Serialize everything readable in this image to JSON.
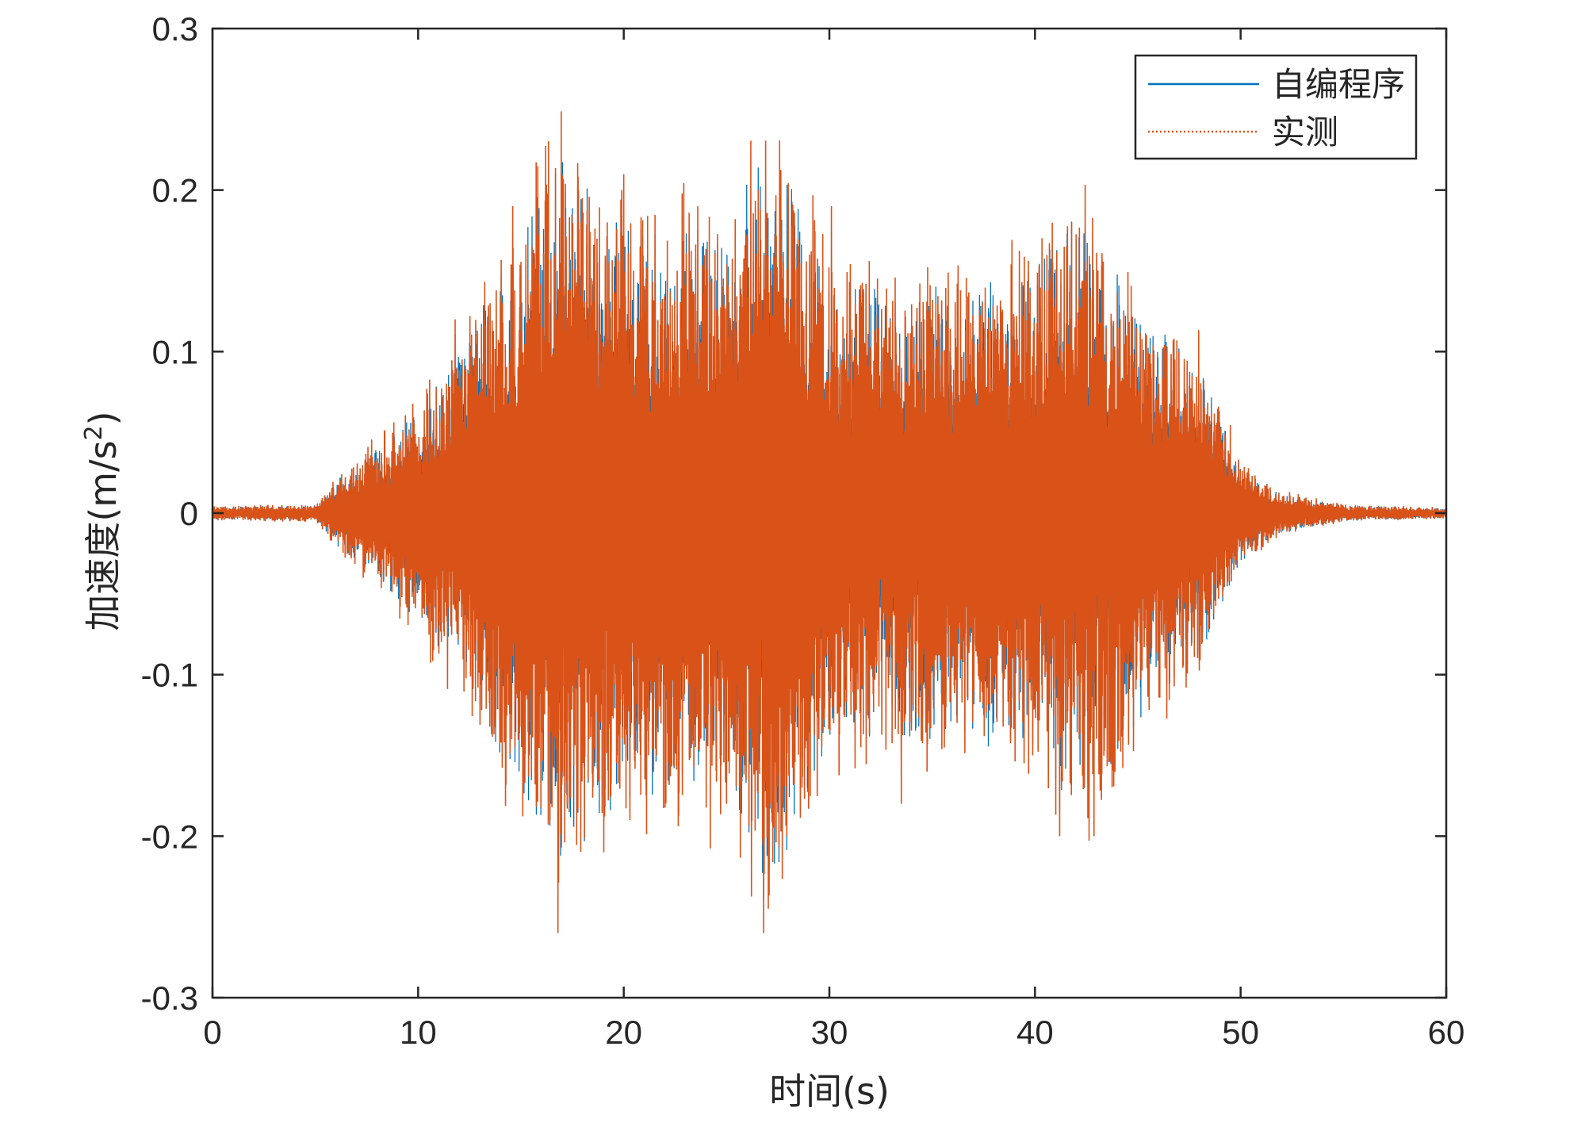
{
  "colors": {
    "series_simulated": "#0072BD",
    "series_measured": "#D95319",
    "axes": "#262626",
    "background": "#ffffff"
  },
  "chart_data": {
    "type": "line",
    "title": "",
    "xlabel": "时间(s)",
    "ylabel": "加速度(m/s2)",
    "ylabel_parts": {
      "base": "加速度(m/s",
      "sup": "2",
      "close": ")"
    },
    "xlim": [
      0,
      60
    ],
    "ylim": [
      -0.3,
      0.3
    ],
    "xticks": [
      0,
      10,
      20,
      30,
      40,
      50,
      60
    ],
    "xtick_labels": [
      "0",
      "10",
      "20",
      "30",
      "40",
      "50",
      "60"
    ],
    "yticks": [
      -0.3,
      -0.2,
      -0.1,
      0,
      0.1,
      0.2,
      0.3
    ],
    "ytick_labels": [
      "-0.3",
      "-0.2",
      "-0.1",
      "0",
      "0.1",
      "0.2",
      "0.3"
    ],
    "grid": false,
    "legend_position": "top-right",
    "series": [
      {
        "name": "自编程序",
        "line_style": "solid",
        "color": "#0072BD"
      },
      {
        "name": "实测",
        "line_style": "dotted",
        "color": "#D95319"
      }
    ],
    "envelope": {
      "x": [
        0,
        5,
        6,
        8,
        10,
        12,
        14,
        17,
        20,
        25,
        27,
        30,
        35,
        40,
        42,
        45,
        48,
        50,
        52,
        55,
        60
      ],
      "amplitude": [
        0.004,
        0.005,
        0.02,
        0.04,
        0.07,
        0.1,
        0.15,
        0.22,
        0.18,
        0.17,
        0.24,
        0.14,
        0.14,
        0.15,
        0.19,
        0.13,
        0.09,
        0.03,
        0.012,
        0.005,
        0.003
      ]
    },
    "peaks": [
      {
        "x": 11.8,
        "y": 0.12
      },
      {
        "x": 13.5,
        "y": 0.13
      },
      {
        "x": 14.6,
        "y": 0.19
      },
      {
        "x": 16.8,
        "y": 0.26
      },
      {
        "x": 16.8,
        "y": -0.26
      },
      {
        "x": 17.8,
        "y": 0.2
      },
      {
        "x": 19.9,
        "y": 0.2
      },
      {
        "x": 20.3,
        "y": -0.19
      },
      {
        "x": 23.6,
        "y": 0.19
      },
      {
        "x": 25.0,
        "y": -0.18
      },
      {
        "x": 26.8,
        "y": 0.26
      },
      {
        "x": 26.8,
        "y": -0.26
      },
      {
        "x": 30.1,
        "y": 0.19
      },
      {
        "x": 33.5,
        "y": 0.18
      },
      {
        "x": 33.5,
        "y": -0.18
      },
      {
        "x": 41.2,
        "y": 0.2
      },
      {
        "x": 41.2,
        "y": -0.2
      },
      {
        "x": 42.4,
        "y": 0.17
      },
      {
        "x": 42.4,
        "y": -0.17
      }
    ]
  }
}
